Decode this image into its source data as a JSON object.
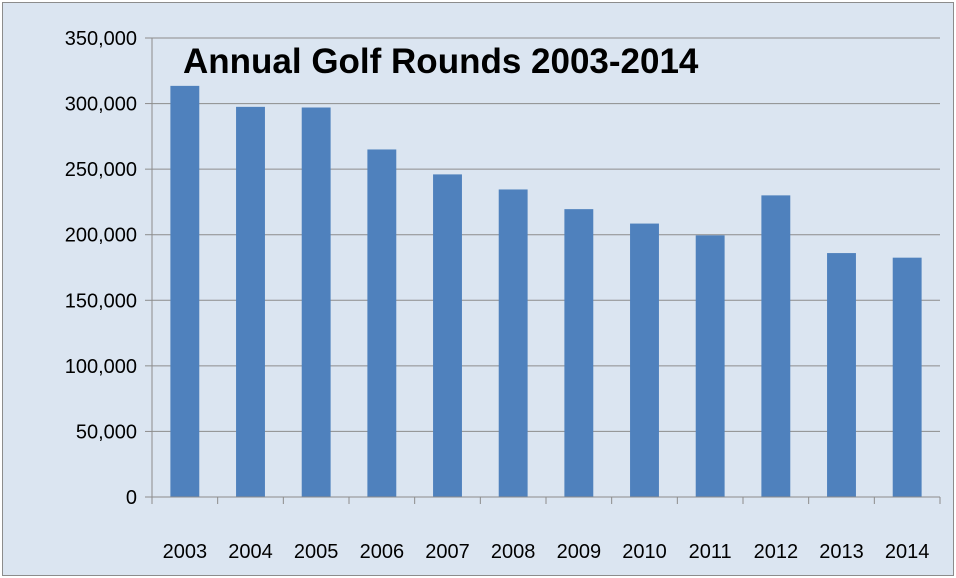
{
  "chart_data": {
    "type": "bar",
    "title": "Annual Golf Rounds 2003-2014",
    "xlabel": "",
    "ylabel": "",
    "categories": [
      "2003",
      "2004",
      "2005",
      "2006",
      "2007",
      "2008",
      "2009",
      "2010",
      "2011",
      "2012",
      "2013",
      "2014"
    ],
    "values": [
      313500,
      297500,
      297000,
      265000,
      246000,
      234500,
      219500,
      208500,
      199500,
      230000,
      186000,
      182500
    ],
    "ylim": [
      0,
      350000
    ],
    "yticks": [
      0,
      50000,
      100000,
      150000,
      200000,
      250000,
      300000,
      350000
    ],
    "ytick_labels": [
      "0",
      "50,000",
      "100,000",
      "150,000",
      "200,000",
      "250,000",
      "300,000",
      "350,000"
    ],
    "grid": true,
    "legend": "none",
    "colors": {
      "bar": "#4f81bd",
      "background": "#dbe5f1",
      "gridline": "#8c8c8c",
      "axis": "#8c8c8c"
    }
  }
}
